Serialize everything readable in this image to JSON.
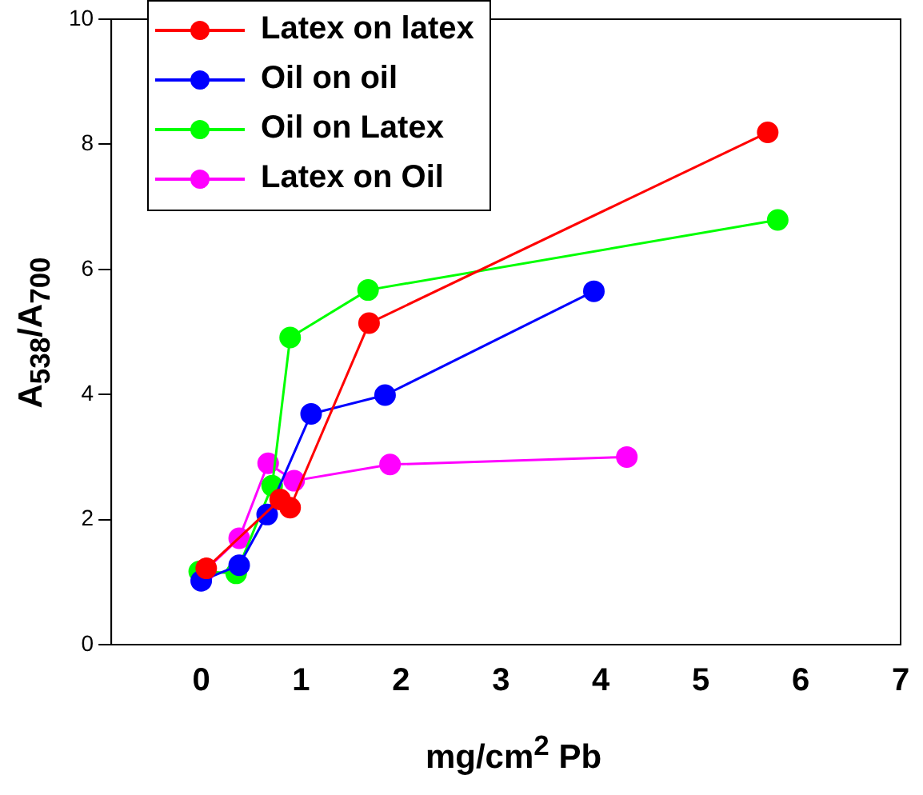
{
  "chart_data": {
    "type": "line",
    "xlabel": "mg/cm$^{2}$ Pb",
    "ylabel": "A$_{538}$/A$_{700}$",
    "xlim": [
      -0.9,
      7
    ],
    "xticks": [
      0,
      1,
      2,
      3,
      4,
      5,
      6,
      7
    ],
    "ylim": [
      0,
      10
    ],
    "yticks": [
      0,
      2,
      4,
      6,
      8,
      10
    ],
    "grid": false,
    "legend": "top left",
    "marker": "circle",
    "line_style": "solid",
    "series": [
      {
        "name": "Latex on latex",
        "color": "#ff0000",
        "x": [
          0.05,
          0.79,
          0.89,
          1.68,
          5.67
        ],
        "values": [
          1.22,
          2.32,
          2.19,
          5.14,
          8.19
        ]
      },
      {
        "name": "Oil on oil",
        "color": "#0000ff",
        "x": [
          0,
          0.38,
          0.66,
          1.1,
          1.84,
          3.93
        ],
        "values": [
          1.02,
          1.27,
          2.08,
          3.69,
          3.99,
          5.65
        ]
      },
      {
        "name": "Oil on Latex",
        "color": "#00ff00",
        "x": [
          -0.02,
          0.35,
          0.71,
          0.89,
          1.67,
          5.77
        ],
        "values": [
          1.17,
          1.14,
          2.54,
          4.91,
          5.67,
          6.79
        ]
      },
      {
        "name": "Latex on Oil",
        "color": "#ff00ff",
        "x": [
          0.03,
          0.38,
          0.67,
          0.93,
          1.89,
          4.26
        ],
        "values": [
          1.17,
          1.7,
          2.9,
          2.62,
          2.88,
          3.0
        ]
      }
    ]
  }
}
